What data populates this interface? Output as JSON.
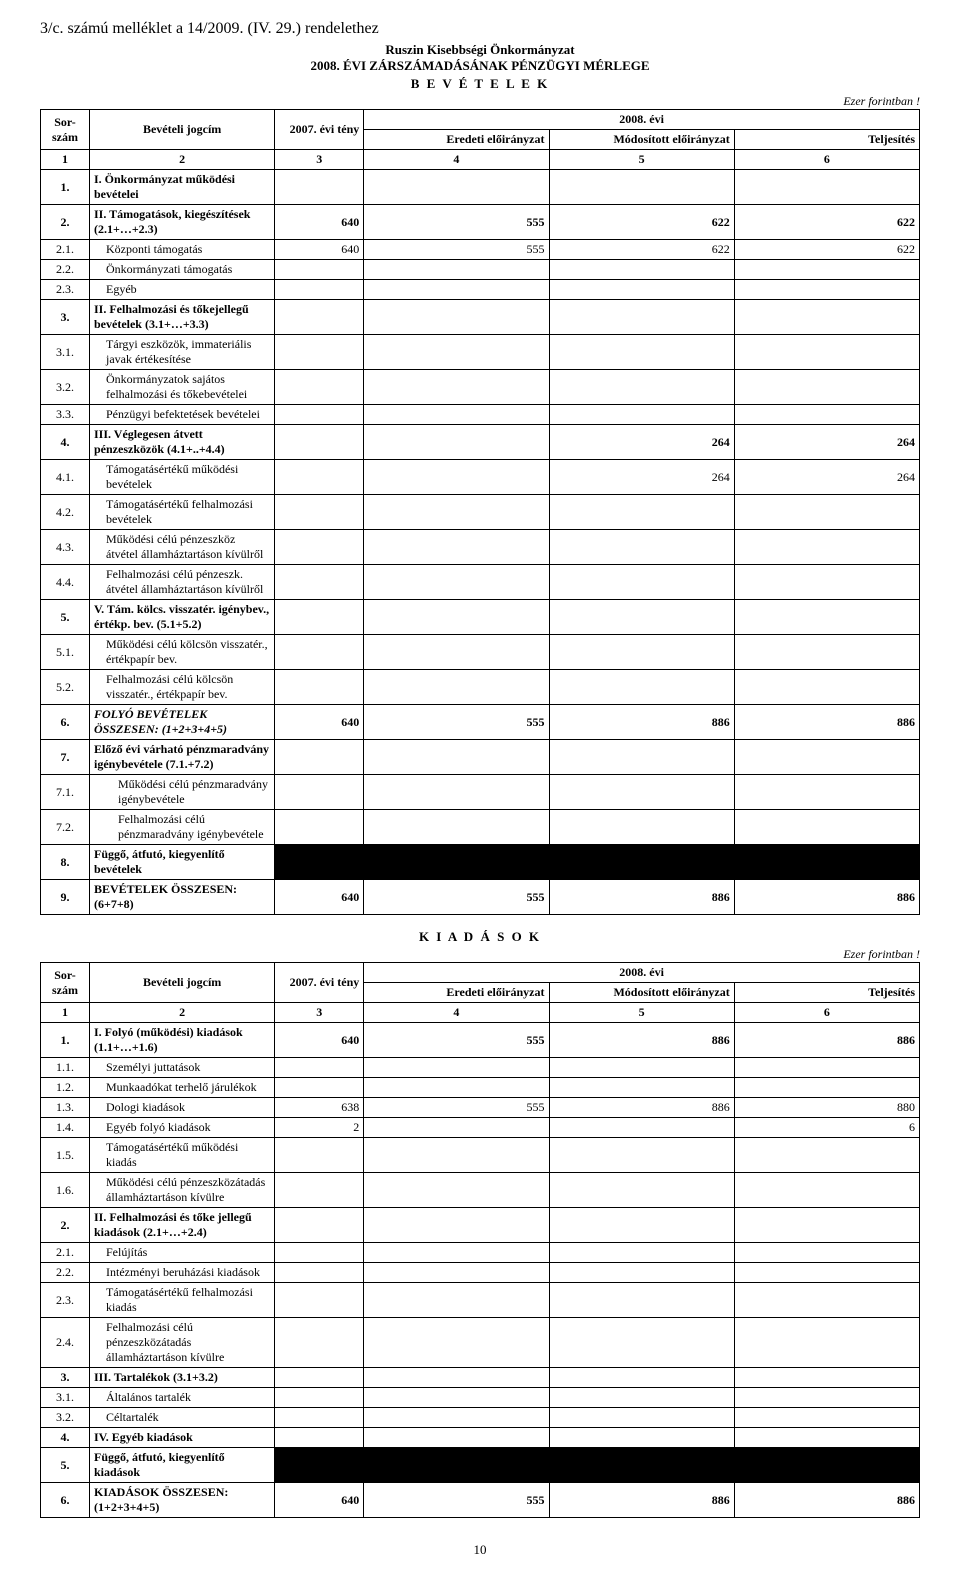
{
  "attachment": "3/c. számú melléklet a 14/2009. (IV. 29.) rendelethez",
  "org": "Ruszin Kisebbségi Önkormányzat",
  "doc_title": "2008. ÉVI ZÁRSZÁMADÁSÁNAK PÉNZÜGYI MÉRLEGE",
  "section_bev": "B E V É T E L E K",
  "section_kiad": "K I A D Á S O K",
  "unit": "Ezer forintban !",
  "page_number": "10",
  "header": {
    "sor": "Sor-\nszám",
    "jogcim": "Bevételi jogcím",
    "y2007": "2007.\névi\ntény",
    "y2008": "2008. évi",
    "eredeti": "Eredeti\nelőirányzat",
    "modositott": "Módosított\nelőirányzat",
    "teljesites": "Teljesítés",
    "colnums": [
      "1",
      "2",
      "3",
      "4",
      "5",
      "6"
    ]
  },
  "bev_rows": [
    {
      "n": "1.",
      "t": "I. Önkormányzat működési bevételei",
      "b": true
    },
    {
      "n": "2.",
      "t": "II. Támogatások, kiegészítések (2.1+…+2.3)",
      "b": true,
      "v": [
        "640",
        "555",
        "622",
        "622"
      ]
    },
    {
      "n": "2.1.",
      "t": "Központi támogatás",
      "v": [
        "640",
        "555",
        "622",
        "622"
      ],
      "i": 1
    },
    {
      "n": "2.2.",
      "t": "Önkormányzati támogatás",
      "i": 1
    },
    {
      "n": "2.3.",
      "t": "Egyéb",
      "i": 1
    },
    {
      "n": "3.",
      "t": "II. Felhalmozási és tőkejellegű bevételek (3.1+…+3.3)",
      "b": true
    },
    {
      "n": "3.1.",
      "t": "Tárgyi eszközök, immateriális javak értékesítése",
      "i": 1
    },
    {
      "n": "3.2.",
      "t": "Önkormányzatok sajátos felhalmozási és tőkebevételei",
      "i": 1
    },
    {
      "n": "3.3.",
      "t": "Pénzügyi befektetések bevételei",
      "i": 1
    },
    {
      "n": "4.",
      "t": "III. Véglegesen átvett pénzeszközök (4.1+..+4.4)",
      "b": true,
      "v": [
        "",
        "",
        "264",
        "264"
      ]
    },
    {
      "n": "4.1.",
      "t": "Támogatásértékű működési bevételek",
      "v": [
        "",
        "",
        "264",
        "264"
      ],
      "i": 1
    },
    {
      "n": "4.2.",
      "t": "Támogatásértékű felhalmozási bevételek",
      "i": 1
    },
    {
      "n": "4.3.",
      "t": "Működési célú pénzeszköz átvétel államháztartáson kívülről",
      "i": 1
    },
    {
      "n": "4.4.",
      "t": "Felhalmozási célú pénzeszk. átvétel államháztartáson kívülről",
      "i": 1
    },
    {
      "n": "5.",
      "t": "V. Tám. kölcs. visszatér. igénybev., értékp. bev. (5.1+5.2)",
      "b": true
    },
    {
      "n": "5.1.",
      "t": "Működési célú  kölcsön visszatér., értékpapír bev.",
      "i": 1
    },
    {
      "n": "5.2.",
      "t": "Felhalmozási célú  kölcsön visszatér., értékpapír bev.",
      "i": 1
    },
    {
      "n": "6.",
      "t": "FOLYÓ BEVÉTELEK ÖSSZESEN: (1+2+3+4+5)",
      "b": true,
      "it": true,
      "v": [
        "640",
        "555",
        "886",
        "886"
      ]
    },
    {
      "n": "7.",
      "t": "Előző évi várható pénzmaradvány igénybevétele (7.1.+7.2)",
      "b": true
    },
    {
      "n": "7.1.",
      "t": "Működési célú pénzmaradvány igénybevétele",
      "i": 2
    },
    {
      "n": "7.2.",
      "t": "Felhalmozási célú pénzmaradvány igénybevétele",
      "i": 2
    },
    {
      "n": "8.",
      "t": "Függő, átfutó, kiegyenlítő bevételek",
      "b": true,
      "black": true
    },
    {
      "n": "9.",
      "t": "BEVÉTELEK ÖSSZESEN: (6+7+8)",
      "b": true,
      "v": [
        "640",
        "555",
        "886",
        "886"
      ]
    }
  ],
  "kiad_rows": [
    {
      "n": "1.",
      "t": "I. Folyó (működési) kiadások (1.1+…+1.6)",
      "b": true,
      "v": [
        "640",
        "555",
        "886",
        "886"
      ]
    },
    {
      "n": "1.1.",
      "t": "Személyi  juttatások",
      "i": 1
    },
    {
      "n": "1.2.",
      "t": "Munkaadókat terhelő járulékok",
      "i": 1
    },
    {
      "n": "1.3.",
      "t": "Dologi  kiadások",
      "v": [
        "638",
        "555",
        "886",
        "880"
      ],
      "i": 1
    },
    {
      "n": "1.4.",
      "t": "Egyéb folyó kiadások",
      "v": [
        "2",
        "",
        "",
        "6"
      ],
      "i": 1
    },
    {
      "n": "1.5.",
      "t": "Támogatásértékű működési kiadás",
      "i": 1
    },
    {
      "n": "1.6.",
      "t": "Működési célú pénzeszközátadás államháztartáson kívülre",
      "i": 1
    },
    {
      "n": "2.",
      "t": "II. Felhalmozási és tőke jellegű kiadások (2.1+…+2.4)",
      "b": true
    },
    {
      "n": "2.1.",
      "t": "Felújítás",
      "i": 1
    },
    {
      "n": "2.2.",
      "t": "Intézményi beruházási kiadások",
      "i": 1
    },
    {
      "n": "2.3.",
      "t": "Támogatásértékű felhalmozási kiadás",
      "i": 1
    },
    {
      "n": "2.4.",
      "t": "Felhalmozási célú pénzeszközátadás államháztartáson kívülre",
      "i": 1
    },
    {
      "n": "3.",
      "t": "III. Tartalékok (3.1+3.2)",
      "b": true
    },
    {
      "n": "3.1.",
      "t": "Általános tartalék",
      "i": 1
    },
    {
      "n": "3.2.",
      "t": "Céltartalék",
      "i": 1
    },
    {
      "n": "4.",
      "t": "IV. Egyéb kiadások",
      "b": true
    },
    {
      "n": "5.",
      "t": "Függő, átfutó, kiegyenlítő kiadások",
      "b": true,
      "black": true
    },
    {
      "n": "6.",
      "t": "KIADÁSOK ÖSSZESEN: (1+2+3+4+5)",
      "b": true,
      "v": [
        "640",
        "555",
        "886",
        "886"
      ]
    }
  ]
}
